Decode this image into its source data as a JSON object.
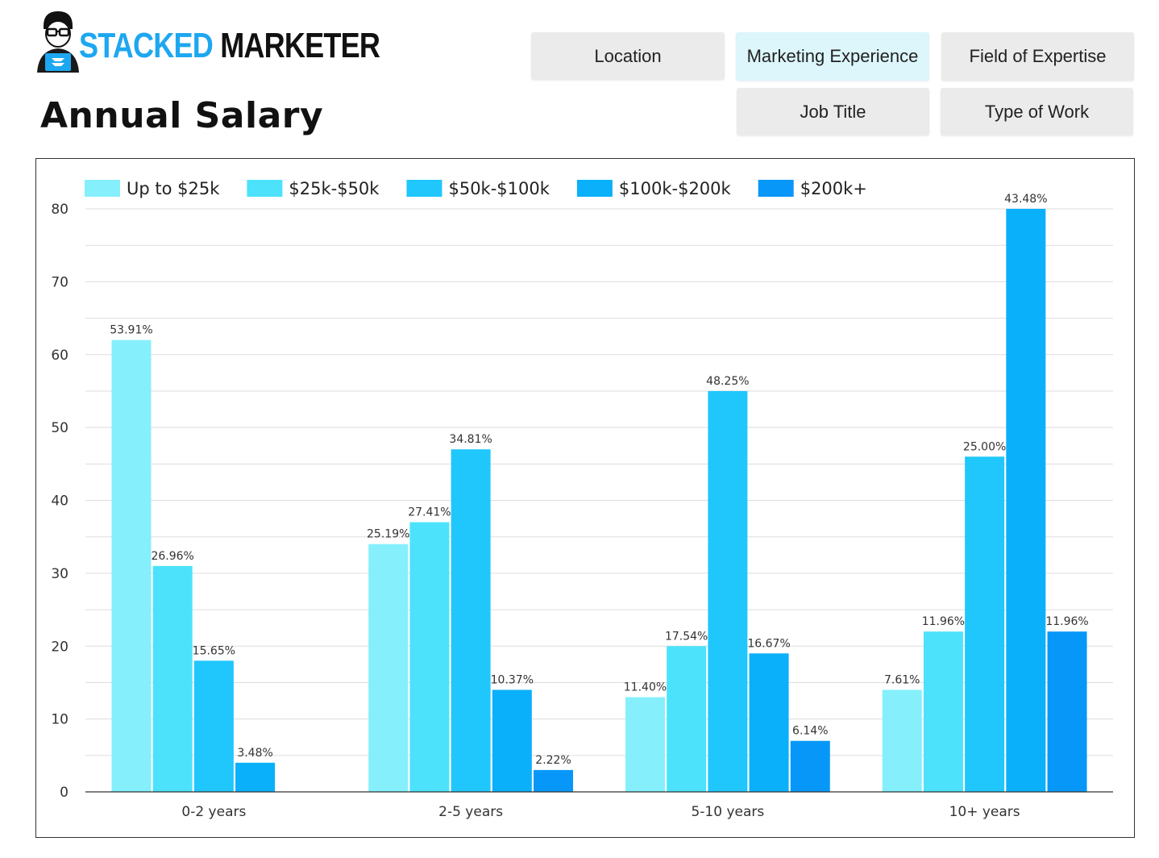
{
  "logo": {
    "text_accent": "STACKED",
    "text_main": "MARKETER"
  },
  "page_title": "Annual Salary",
  "tabs": [
    {
      "label": "Location",
      "active": false
    },
    {
      "label": "Marketing Experience",
      "active": true
    },
    {
      "label": "Field of Expertise",
      "active": false
    },
    {
      "label": "Job Title",
      "active": false
    },
    {
      "label": "Type of Work",
      "active": false
    }
  ],
  "colors": {
    "accent": "#1da7f0",
    "active_tab": "#dcf6fb",
    "tab": "#ebebeb"
  },
  "chart_data": {
    "type": "bar",
    "categories": [
      "0-2 years",
      "2-5 years",
      "5-10 years",
      "10+ years"
    ],
    "series": [
      {
        "name": "Up to $25k",
        "color": "#86effc",
        "values": [
          62,
          34,
          13,
          14
        ],
        "labels": [
          "53.91%",
          "25.19%",
          "11.40%",
          "7.61%"
        ]
      },
      {
        "name": "$25k-$50k",
        "color": "#4ce2fc",
        "values": [
          31,
          37,
          20,
          22
        ],
        "labels": [
          "26.96%",
          "27.41%",
          "17.54%",
          "11.96%"
        ]
      },
      {
        "name": "$50k-$100k",
        "color": "#20c7fc",
        "values": [
          18,
          47,
          55,
          46
        ],
        "labels": [
          "15.65%",
          "34.81%",
          "48.25%",
          "25.00%"
        ]
      },
      {
        "name": "$100k-$200k",
        "color": "#0bb0fa",
        "values": [
          4,
          14,
          19,
          80
        ],
        "labels": [
          "3.48%",
          "10.37%",
          "16.67%",
          "43.48%"
        ]
      },
      {
        "name": "$200k+",
        "color": "#0797f9",
        "values": [
          0,
          3,
          7,
          22
        ],
        "labels": [
          "",
          "2.22%",
          "6.14%",
          "11.96%"
        ]
      }
    ],
    "yticks": [
      "0",
      "10",
      "20",
      "30",
      "40",
      "50",
      "60",
      "70",
      "80"
    ],
    "ylim": [
      0,
      80
    ],
    "grid": true,
    "legend": "top-left"
  }
}
